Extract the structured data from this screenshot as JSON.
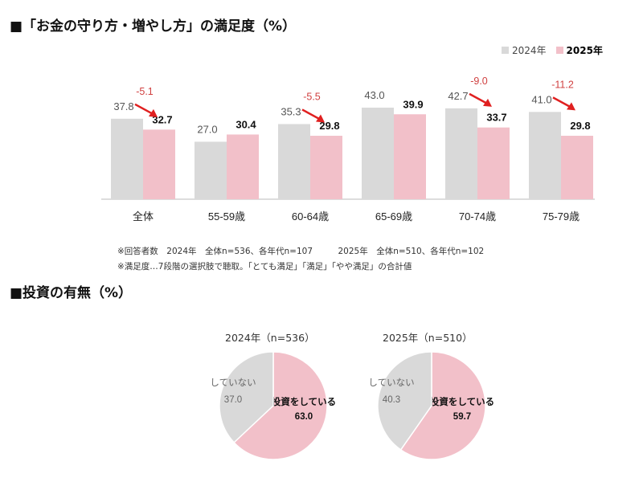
{
  "title1": "■「お金の守り方・増やし方」の満足度（%）",
  "title2": "■投資の有無（%）",
  "notes": [
    "※回答者数　2024年　全体n=536、各年代n=107　　　2025年　全体n=510、各年代n=102",
    "※満足度…7段階の選択肢で聴取。「とても満足」「満足」「やや満足」の合計値"
  ],
  "chart_data": [
    {
      "type": "bar",
      "categories": [
        "全体",
        "55-59歳",
        "60-64歳",
        "65-69歳",
        "70-74歳",
        "75-79歳"
      ],
      "series": [
        {
          "name": "2024年",
          "color": "#d9d9d9",
          "values": [
            37.8,
            27.0,
            35.3,
            43.0,
            42.7,
            41.0
          ]
        },
        {
          "name": "2025年",
          "color": "#f2c0c9",
          "values": [
            32.7,
            30.4,
            29.8,
            39.9,
            33.7,
            29.8
          ]
        }
      ],
      "annotations": [
        "-5.1",
        "",
        "-5.5",
        "",
        "-9.0",
        "-11.2"
      ],
      "annotation_color": "#e02020",
      "legend": "top-right",
      "grid": false
    },
    {
      "type": "pie",
      "title": "2024年（n=536）",
      "slices": [
        {
          "label": "投資をしている",
          "value": 63.0,
          "color": "#f2c0c9"
        },
        {
          "label": "していない",
          "value": 37.0,
          "color": "#d9d9d9"
        }
      ]
    },
    {
      "type": "pie",
      "title": "2025年（n=510）",
      "slices": [
        {
          "label": "投資をしている",
          "value": 59.7,
          "color": "#f2c0c9"
        },
        {
          "label": "していない",
          "value": 40.3,
          "color": "#d9d9d9"
        }
      ]
    }
  ]
}
